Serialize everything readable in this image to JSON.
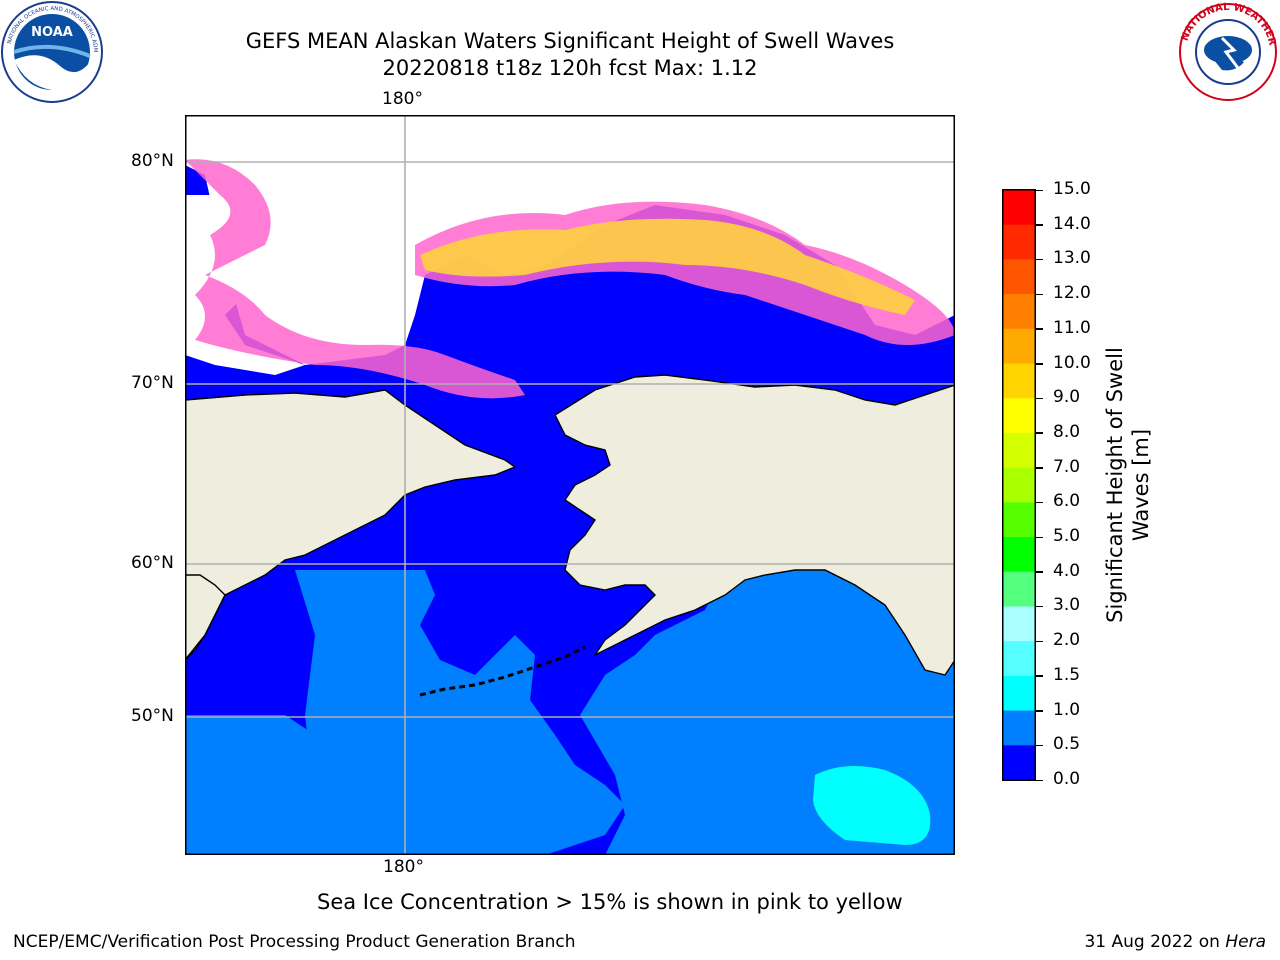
{
  "title_line1": "GEFS MEAN Alaskan Waters Significant Height of Swell Waves",
  "title_line2": "20220818 t18z 120h fcst   Max: 1.12",
  "logos": {
    "left": "NOAA",
    "right": "NATIONAL WEATHER SERVICE"
  },
  "map": {
    "lon_label_top": "180°",
    "lon_label_bottom": "180°",
    "lat_labels": [
      "80°N",
      "70°N",
      "60°N",
      "50°N"
    ],
    "colors": {
      "land": "#efedde",
      "ice_edge": "#ff66cc",
      "ice": "#ffd23f",
      "wave_low": "#0000ff",
      "wave_mid": "#0080ff",
      "wave_high": "#00ffff",
      "grid": "#b0b0b0"
    }
  },
  "colorbar": {
    "label": "Significant Height of Swell Waves [m]",
    "label_line1": "Significant Height of Swell",
    "label_line2": "Waves [m]",
    "ticks": [
      "15.0",
      "14.0",
      "13.0",
      "12.0",
      "11.0",
      "10.0",
      "9.0",
      "8.0",
      "7.0",
      "6.0",
      "5.0",
      "4.0",
      "3.0",
      "2.0",
      "1.5",
      "1.0",
      "0.5",
      "0.0"
    ],
    "colors": [
      "#ff0000",
      "#ff2a00",
      "#ff5500",
      "#ff8000",
      "#ffaa00",
      "#ffd400",
      "#ffff00",
      "#d4ff00",
      "#aaff00",
      "#55ff00",
      "#00ff00",
      "#55ff7f",
      "#aaffff",
      "#55ffff",
      "#00ffff",
      "#0080ff",
      "#0000ff"
    ]
  },
  "chart_data": {
    "type": "heatmap",
    "title": "GEFS MEAN Alaskan Waters Significant Height of Swell Waves",
    "subtitle": "20220818 t18z 120h fcst   Max: 1.12",
    "max": 1.12,
    "units": "m",
    "colorbar_range": [
      0.0,
      15.0
    ],
    "gridlines_lat": [
      50,
      60,
      70,
      80
    ],
    "gridlines_lon": [
      180
    ],
    "grid": true
  },
  "note": "Sea Ice Concentration > 15% is shown in pink to yellow",
  "footer_left": "NCEP/EMC/Verification Post Processing Product Generation Branch",
  "footer_right_date": "31 Aug 2022 on ",
  "footer_right_system": "Hera"
}
